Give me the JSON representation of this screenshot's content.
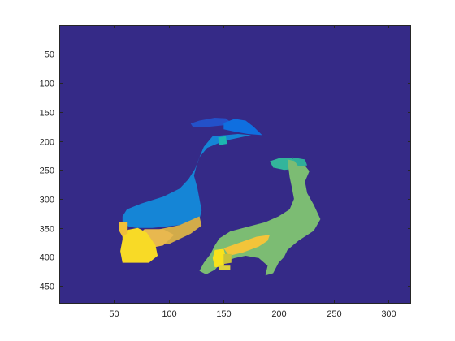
{
  "chart_data": {
    "type": "heatmap",
    "title": "",
    "xlabel": "",
    "ylabel": "",
    "xlim": [
      0.5,
      320.5
    ],
    "ylim": [
      0.5,
      480.5
    ],
    "y_reversed": true,
    "xticks": [
      50,
      100,
      150,
      200,
      250,
      300
    ],
    "yticks": [
      50,
      100,
      150,
      200,
      250,
      300,
      350,
      400,
      450
    ],
    "xtick_labels": [
      "50",
      "100",
      "150",
      "200",
      "250",
      "300"
    ],
    "ytick_labels": [
      "50",
      "100",
      "150",
      "200",
      "250",
      "300",
      "350",
      "400",
      "450"
    ],
    "colormap": "parula",
    "background_color": "#352a87",
    "regions": [
      {
        "name": "peacock-left-crest",
        "color": "#2351c9",
        "points": [
          [
            120,
            170
          ],
          [
            128,
            165
          ],
          [
            142,
            160
          ],
          [
            152,
            161
          ],
          [
            158,
            170
          ],
          [
            150,
            173
          ],
          [
            135,
            176
          ],
          [
            122,
            176
          ]
        ]
      },
      {
        "name": "peacock-left-head",
        "color": "#0f6fe0",
        "points": [
          [
            150,
            169
          ],
          [
            160,
            162
          ],
          [
            170,
            165
          ],
          [
            177,
            175
          ],
          [
            185,
            190
          ],
          [
            172,
            188
          ],
          [
            160,
            184
          ],
          [
            150,
            180
          ]
        ]
      },
      {
        "name": "peacock-left-body",
        "color": "#1585d6",
        "points": [
          [
            140,
            192
          ],
          [
            152,
            190
          ],
          [
            163,
            188
          ],
          [
            175,
            190
          ],
          [
            150,
            200
          ],
          [
            135,
            212
          ],
          [
            128,
            228
          ],
          [
            125,
            245
          ],
          [
            123,
            260
          ],
          [
            126,
            280
          ],
          [
            128,
            300
          ],
          [
            130,
            320
          ],
          [
            128,
            335
          ],
          [
            110,
            345
          ],
          [
            85,
            350
          ],
          [
            70,
            350
          ],
          [
            58,
            345
          ],
          [
            58,
            330
          ],
          [
            62,
            318
          ],
          [
            75,
            308
          ],
          [
            95,
            296
          ],
          [
            110,
            282
          ],
          [
            118,
            266
          ],
          [
            124,
            248
          ],
          [
            128,
            228
          ],
          [
            132,
            210
          ]
        ]
      },
      {
        "name": "peacock-left-eye",
        "color": "#1db6b0",
        "points": [
          [
            145,
            194
          ],
          [
            152,
            192
          ],
          [
            153,
            205
          ],
          [
            146,
            207
          ]
        ]
      },
      {
        "name": "peacock-left-wing",
        "color": "#d2ab4a",
        "points": [
          [
            128,
            330
          ],
          [
            130,
            346
          ],
          [
            120,
            360
          ],
          [
            100,
            378
          ],
          [
            85,
            378
          ],
          [
            80,
            362
          ],
          [
            92,
            352
          ],
          [
            110,
            345
          ]
        ]
      },
      {
        "name": "peacock-left-wing-light",
        "color": "#e8b84f",
        "points": [
          [
            78,
            352
          ],
          [
            95,
            352
          ],
          [
            105,
            362
          ],
          [
            95,
            380
          ],
          [
            82,
            385
          ],
          [
            72,
            378
          ],
          [
            72,
            362
          ]
        ]
      },
      {
        "name": "peacock-left-tail",
        "color": "#f8da26",
        "points": [
          [
            58,
            355
          ],
          [
            72,
            350
          ],
          [
            80,
            358
          ],
          [
            88,
            380
          ],
          [
            90,
            398
          ],
          [
            82,
            410
          ],
          [
            68,
            410
          ],
          [
            58,
            410
          ],
          [
            56,
            390
          ],
          [
            58,
            370
          ]
        ]
      },
      {
        "name": "peacock-left-tail-edge",
        "color": "#f0bf3a",
        "points": [
          [
            55,
            340
          ],
          [
            62,
            340
          ],
          [
            62,
            360
          ],
          [
            58,
            365
          ],
          [
            55,
            355
          ]
        ]
      },
      {
        "name": "peacock-right-head",
        "color": "#33b59b",
        "points": [
          [
            192,
            235
          ],
          [
            200,
            230
          ],
          [
            212,
            230
          ],
          [
            220,
            238
          ],
          [
            216,
            248
          ],
          [
            205,
            250
          ],
          [
            195,
            246
          ]
        ]
      },
      {
        "name": "peacock-right-body",
        "color": "#7cbc73",
        "points": [
          [
            208,
            232
          ],
          [
            222,
            238
          ],
          [
            228,
            252
          ],
          [
            224,
            270
          ],
          [
            226,
            290
          ],
          [
            232,
            310
          ],
          [
            238,
            335
          ],
          [
            232,
            355
          ],
          [
            218,
            372
          ],
          [
            208,
            388
          ],
          [
            205,
            400
          ],
          [
            200,
            410
          ],
          [
            195,
            428
          ],
          [
            188,
            432
          ],
          [
            190,
            415
          ],
          [
            182,
            402
          ],
          [
            170,
            398
          ],
          [
            160,
            402
          ],
          [
            148,
            410
          ],
          [
            142,
            422
          ],
          [
            134,
            430
          ],
          [
            128,
            424
          ],
          [
            132,
            410
          ],
          [
            138,
            395
          ],
          [
            142,
            380
          ],
          [
            146,
            368
          ],
          [
            156,
            356
          ],
          [
            172,
            348
          ],
          [
            188,
            340
          ],
          [
            200,
            330
          ],
          [
            210,
            318
          ],
          [
            214,
            300
          ],
          [
            212,
            280
          ],
          [
            210,
            262
          ]
        ]
      },
      {
        "name": "peacock-right-neck-edge",
        "color": "#2fae9a",
        "points": [
          [
            212,
            228
          ],
          [
            224,
            232
          ],
          [
            226,
            242
          ],
          [
            218,
            244
          ]
        ]
      },
      {
        "name": "peacock-right-wing",
        "color": "#f3c43a",
        "points": [
          [
            150,
            385
          ],
          [
            165,
            375
          ],
          [
            180,
            365
          ],
          [
            192,
            362
          ],
          [
            190,
            372
          ],
          [
            182,
            382
          ],
          [
            168,
            392
          ],
          [
            155,
            398
          ]
        ]
      },
      {
        "name": "peacock-right-tail",
        "color": "#f9e21c",
        "points": [
          [
            142,
            388
          ],
          [
            150,
            386
          ],
          [
            152,
            400
          ],
          [
            150,
            416
          ],
          [
            142,
            418
          ],
          [
            140,
            402
          ]
        ]
      },
      {
        "name": "peacock-right-tail-shade",
        "color": "#c8c23a",
        "points": [
          [
            150,
            395
          ],
          [
            157,
            395
          ],
          [
            157,
            410
          ],
          [
            150,
            412
          ]
        ]
      },
      {
        "name": "peacock-right-tail-tip",
        "color": "#ded23a",
        "points": [
          [
            146,
            415
          ],
          [
            156,
            415
          ],
          [
            156,
            422
          ],
          [
            146,
            422
          ]
        ]
      }
    ]
  }
}
